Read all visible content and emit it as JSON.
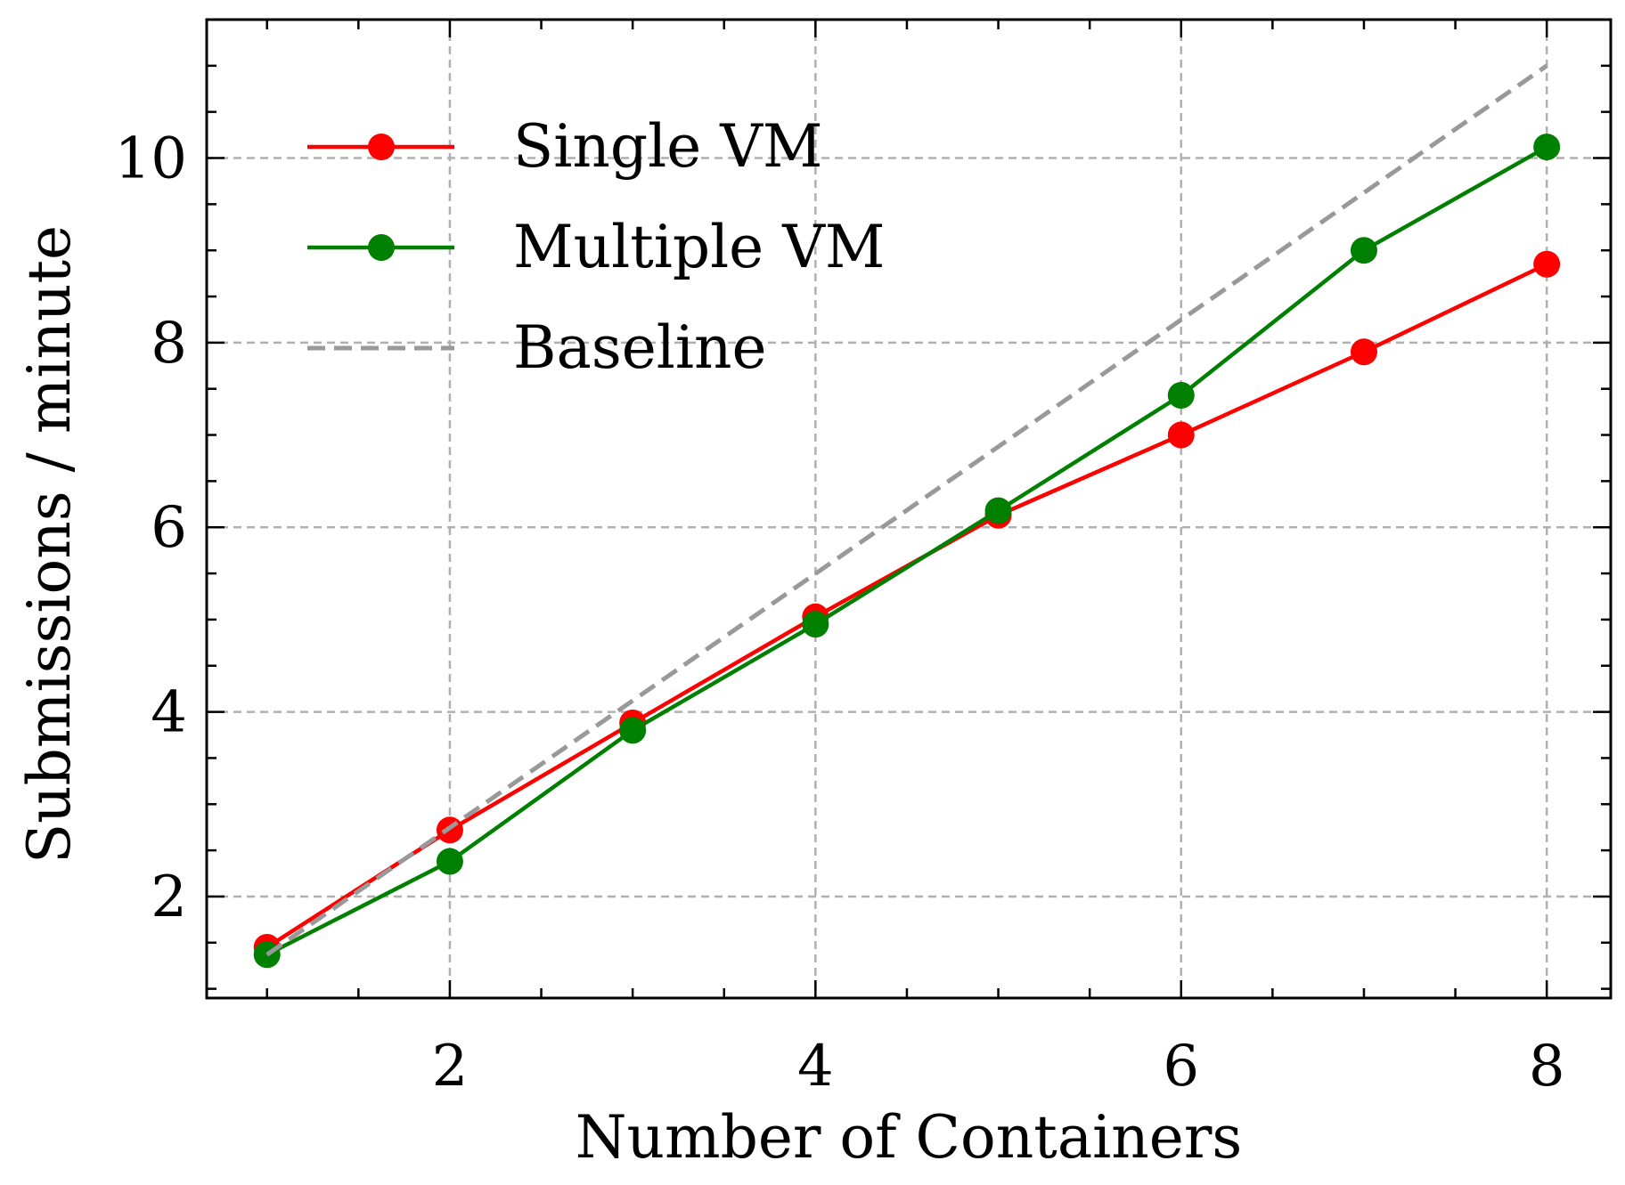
{
  "chart_data": {
    "type": "line",
    "xlabel": "Number of Containers",
    "ylabel": "Submissions / minute",
    "xlim": [
      0.67,
      8.35
    ],
    "ylim": [
      0.9,
      11.5
    ],
    "x_ticks": [
      2,
      4,
      6,
      8
    ],
    "y_ticks": [
      2,
      4,
      6,
      8,
      10
    ],
    "x_minor_step": 0.5,
    "y_minor_step": 0.5,
    "grid": true,
    "legend_position": "top-left",
    "series": [
      {
        "name": "Single VM",
        "color": "#ff0000",
        "style": "solid-marker",
        "x": [
          1,
          2,
          3,
          4,
          5,
          6,
          7,
          8
        ],
        "y": [
          1.45,
          2.72,
          3.88,
          5.03,
          6.13,
          7.0,
          7.9,
          8.85
        ]
      },
      {
        "name": "Multiple VM",
        "color": "#008000",
        "style": "solid-marker",
        "x": [
          1,
          2,
          3,
          4,
          5,
          6,
          7,
          8
        ],
        "y": [
          1.37,
          2.38,
          3.8,
          4.95,
          6.18,
          7.43,
          9.0,
          10.12
        ]
      },
      {
        "name": "Baseline",
        "color": "#999999",
        "style": "dashed",
        "x": [
          1,
          8
        ],
        "y": [
          1.37,
          11.0
        ]
      }
    ]
  }
}
